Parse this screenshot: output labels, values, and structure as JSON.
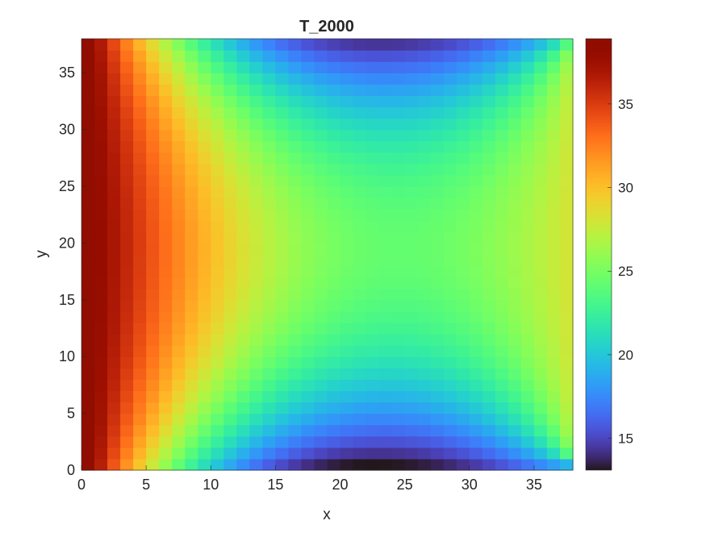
{
  "chart_data": {
    "type": "heatmap",
    "title": "T_2000",
    "xlabel": "x",
    "ylabel": "y",
    "xlim": [
      0,
      38
    ],
    "ylim": [
      0,
      38
    ],
    "grid_cells": [
      38,
      38
    ],
    "grid": false,
    "colormap": "turbo",
    "xticks": [
      "0",
      "5",
      "10",
      "15",
      "20",
      "25",
      "30",
      "35"
    ],
    "yticks": [
      "0",
      "5",
      "10",
      "15",
      "20",
      "25",
      "30",
      "35"
    ],
    "colorbar": {
      "range": [
        13.1,
        38.9
      ],
      "ticks": [
        "15",
        "20",
        "25",
        "30",
        "35"
      ],
      "location": "right"
    },
    "field": {
      "min_value": 13.1,
      "max_value": 38.9,
      "left_edge_value": 38.9,
      "right_edge_value": 28.5,
      "bottom_edge_min_value": 13.1,
      "top_edge_min_value": 13.2,
      "center_value": 25.0,
      "description_of_pattern": "hot along left edge, warm along right edge, coolest at bottom and top edge centers"
    }
  }
}
